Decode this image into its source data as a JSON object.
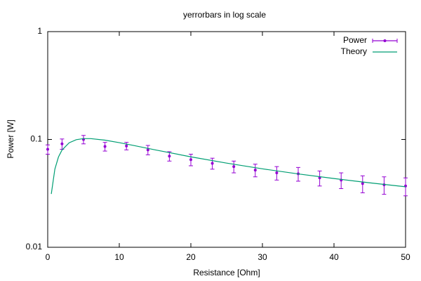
{
  "chart_data": {
    "type": "errorbars",
    "title": "yerrorbars in log scale",
    "xlabel": "Resistance [Ohm]",
    "ylabel": "Power [W]",
    "xlim": [
      0,
      50
    ],
    "xticks": [
      0,
      10,
      20,
      30,
      40,
      50
    ],
    "ylim": [
      0.01,
      1
    ],
    "yticks": [
      0.01,
      0.1,
      1
    ],
    "ylog": true,
    "legend": "top-right",
    "series": [
      {
        "name": "Power",
        "style": "errorbars",
        "color": "#9400d3",
        "x": [
          0,
          2,
          5,
          8,
          11,
          14,
          17,
          20,
          23,
          26,
          29,
          32,
          35,
          38,
          41,
          44,
          47,
          50
        ],
        "values": [
          0.081,
          0.091,
          0.1,
          0.086,
          0.087,
          0.08,
          0.07,
          0.065,
          0.06,
          0.056,
          0.052,
          0.049,
          0.048,
          0.044,
          0.042,
          0.039,
          0.038,
          0.037
        ],
        "errors": [
          0.008,
          0.01,
          0.009,
          0.008,
          0.007,
          0.008,
          0.007,
          0.008,
          0.007,
          0.007,
          0.007,
          0.007,
          0.007,
          0.007,
          0.007,
          0.007,
          0.007,
          0.007
        ]
      },
      {
        "name": "Theory",
        "style": "line",
        "color": "#009e73",
        "x": [
          0.5,
          1,
          1.5,
          2,
          3,
          4,
          5,
          6,
          8,
          10,
          12,
          15,
          20,
          25,
          30,
          35,
          40,
          45,
          50
        ],
        "values": [
          0.0312,
          0.0531,
          0.0687,
          0.0798,
          0.0932,
          0.0995,
          0.1018,
          0.1018,
          0.0985,
          0.0934,
          0.0879,
          0.0801,
          0.069,
          0.0603,
          0.0534,
          0.0479,
          0.0434,
          0.0396,
          0.0364
        ]
      }
    ]
  }
}
